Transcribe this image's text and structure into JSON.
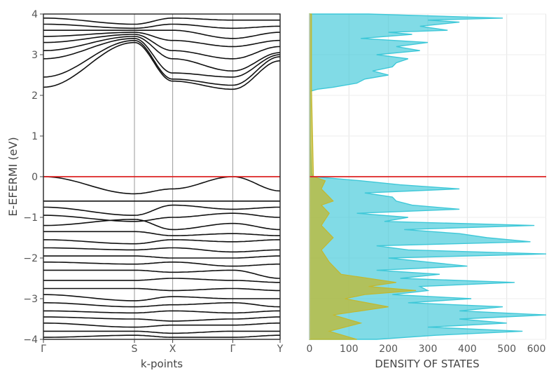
{
  "chart_data": [
    {
      "type": "line",
      "xlabel": "k-points",
      "ylabel": "E-EFERMI (eV)",
      "ylim": [
        -4,
        4
      ],
      "yticks": [
        4,
        3,
        2,
        1,
        0,
        -1,
        -2,
        -3,
        -4
      ],
      "xticks": [
        "Γ",
        "S",
        "X",
        "Γ",
        "Y"
      ],
      "kpoint_positions": [
        0,
        1,
        1.42,
        2.08,
        2.6
      ],
      "grid": "vertical lines at high-symmetry k-points",
      "fermi_line": {
        "value": 0,
        "color": "#dd2222"
      },
      "series": [
        {
          "kind": "conduction",
          "values_at_kpoints": [
            2.2,
            3.3,
            2.35,
            2.15,
            2.85
          ]
        },
        {
          "kind": "conduction",
          "values_at_kpoints": [
            2.45,
            3.35,
            2.4,
            2.25,
            2.95
          ]
        },
        {
          "kind": "conduction",
          "values_at_kpoints": [
            2.9,
            3.4,
            2.55,
            2.45,
            3.0
          ]
        },
        {
          "kind": "conduction",
          "values_at_kpoints": [
            3.1,
            3.45,
            2.9,
            2.6,
            3.05
          ]
        },
        {
          "kind": "conduction",
          "values_at_kpoints": [
            3.3,
            3.5,
            3.1,
            2.9,
            3.2
          ]
        },
        {
          "kind": "conduction",
          "values_at_kpoints": [
            3.45,
            3.55,
            3.35,
            3.2,
            3.35
          ]
        },
        {
          "kind": "conduction",
          "values_at_kpoints": [
            3.6,
            3.6,
            3.6,
            3.4,
            3.55
          ]
        },
        {
          "kind": "conduction",
          "values_at_kpoints": [
            3.75,
            3.65,
            3.75,
            3.65,
            3.7
          ]
        },
        {
          "kind": "conduction",
          "values_at_kpoints": [
            3.9,
            3.75,
            3.9,
            3.85,
            3.85
          ]
        },
        {
          "kind": "valence",
          "values_at_kpoints": [
            0.0,
            -0.42,
            -0.3,
            0.0,
            -0.35
          ]
        },
        {
          "kind": "valence",
          "values_at_kpoints": [
            -0.6,
            -0.6,
            -0.6,
            -0.6,
            -0.6
          ]
        },
        {
          "kind": "valence",
          "values_at_kpoints": [
            -0.75,
            -0.95,
            -0.7,
            -0.8,
            -0.75
          ]
        },
        {
          "kind": "valence",
          "values_at_kpoints": [
            -0.95,
            -1.1,
            -1.0,
            -0.9,
            -1.0
          ]
        },
        {
          "kind": "valence",
          "values_at_kpoints": [
            -1.2,
            -1.05,
            -1.3,
            -1.15,
            -1.3
          ]
        },
        {
          "kind": "valence",
          "values_at_kpoints": [
            -1.35,
            -1.35,
            -1.45,
            -1.4,
            -1.45
          ]
        },
        {
          "kind": "valence",
          "values_at_kpoints": [
            -1.55,
            -1.65,
            -1.55,
            -1.6,
            -1.55
          ]
        },
        {
          "kind": "valence",
          "values_at_kpoints": [
            -1.75,
            -1.8,
            -1.75,
            -1.85,
            -1.8
          ]
        },
        {
          "kind": "valence",
          "values_at_kpoints": [
            -1.95,
            -1.95,
            -2.0,
            -2.0,
            -1.95
          ]
        },
        {
          "kind": "valence",
          "values_at_kpoints": [
            -2.1,
            -2.15,
            -2.1,
            -2.2,
            -2.15
          ]
        },
        {
          "kind": "valence",
          "values_at_kpoints": [
            -2.3,
            -2.3,
            -2.35,
            -2.3,
            -2.5
          ]
        },
        {
          "kind": "valence",
          "values_at_kpoints": [
            -2.55,
            -2.55,
            -2.5,
            -2.55,
            -2.6
          ]
        },
        {
          "kind": "valence",
          "values_at_kpoints": [
            -2.75,
            -2.75,
            -2.8,
            -2.75,
            -2.8
          ]
        },
        {
          "kind": "valence",
          "values_at_kpoints": [
            -2.9,
            -3.05,
            -2.95,
            -3.0,
            -3.0
          ]
        },
        {
          "kind": "valence",
          "values_at_kpoints": [
            -3.1,
            -3.2,
            -3.15,
            -3.1,
            -3.2
          ]
        },
        {
          "kind": "valence",
          "values_at_kpoints": [
            -3.3,
            -3.35,
            -3.3,
            -3.35,
            -3.3
          ]
        },
        {
          "kind": "valence",
          "values_at_kpoints": [
            -3.45,
            -3.5,
            -3.55,
            -3.5,
            -3.45
          ]
        },
        {
          "kind": "valence",
          "values_at_kpoints": [
            -3.6,
            -3.7,
            -3.65,
            -3.65,
            -3.6
          ]
        },
        {
          "kind": "valence",
          "values_at_kpoints": [
            -3.8,
            -3.8,
            -3.85,
            -3.8,
            -3.8
          ]
        },
        {
          "kind": "valence",
          "values_at_kpoints": [
            -3.95,
            -3.9,
            -3.95,
            -3.95,
            -3.9
          ]
        }
      ]
    },
    {
      "type": "area",
      "xlabel": "DENSITY OF STATES",
      "ylabel": "",
      "xlim": [
        0,
        600
      ],
      "ylim": [
        -4,
        4
      ],
      "xticks": [
        0,
        100,
        200,
        300,
        400,
        500,
        600
      ],
      "grid": true,
      "fermi_line": {
        "value": 0,
        "color": "#dd2222"
      },
      "series": [
        {
          "color": "#3ec8d8",
          "energy": [
            4.0,
            3.9,
            3.85,
            3.8,
            3.7,
            3.6,
            3.55,
            3.5,
            3.4,
            3.3,
            3.2,
            3.1,
            3.0,
            2.9,
            2.8,
            2.7,
            2.6,
            2.5,
            2.4,
            2.3,
            2.2,
            2.15,
            2.1,
            1.5,
            0.8,
            0.08,
            0.0,
            -0.1,
            -0.2,
            -0.3,
            -0.4,
            -0.5,
            -0.6,
            -0.7,
            -0.8,
            -0.9,
            -1.0,
            -1.1,
            -1.2,
            -1.3,
            -1.4,
            -1.5,
            -1.6,
            -1.7,
            -1.8,
            -1.9,
            -2.0,
            -2.1,
            -2.2,
            -2.3,
            -2.4,
            -2.5,
            -2.6,
            -2.7,
            -2.8,
            -2.9,
            -3.0,
            -3.1,
            -3.2,
            -3.3,
            -3.4,
            -3.5,
            -3.6,
            -3.7,
            -3.8,
            -3.9,
            -4.0
          ],
          "dos": [
            150,
            490,
            300,
            380,
            280,
            350,
            200,
            260,
            130,
            300,
            220,
            280,
            170,
            250,
            220,
            210,
            160,
            200,
            140,
            120,
            60,
            20,
            2,
            2,
            2,
            5,
            10,
            130,
            230,
            380,
            140,
            210,
            220,
            260,
            380,
            120,
            250,
            190,
            570,
            240,
            380,
            450,
            560,
            170,
            250,
            620,
            200,
            300,
            400,
            170,
            330,
            230,
            520,
            280,
            300,
            210,
            410,
            250,
            490,
            380,
            610,
            380,
            500,
            300,
            540,
            320,
            170
          ]
        },
        {
          "color": "#c2b82e",
          "energy": [
            4.0,
            2.2,
            0.0,
            -0.1,
            -0.3,
            -0.6,
            -0.7,
            -0.9,
            -1.2,
            -1.5,
            -1.8,
            -2.1,
            -2.4,
            -2.6,
            -2.7,
            -2.8,
            -2.9,
            -3.0,
            -3.2,
            -3.4,
            -3.6,
            -3.8,
            -4.0
          ],
          "dos": [
            5,
            5,
            10,
            40,
            30,
            60,
            30,
            50,
            30,
            60,
            30,
            50,
            80,
            220,
            150,
            270,
            140,
            90,
            200,
            60,
            130,
            50,
            120
          ]
        }
      ]
    }
  ]
}
